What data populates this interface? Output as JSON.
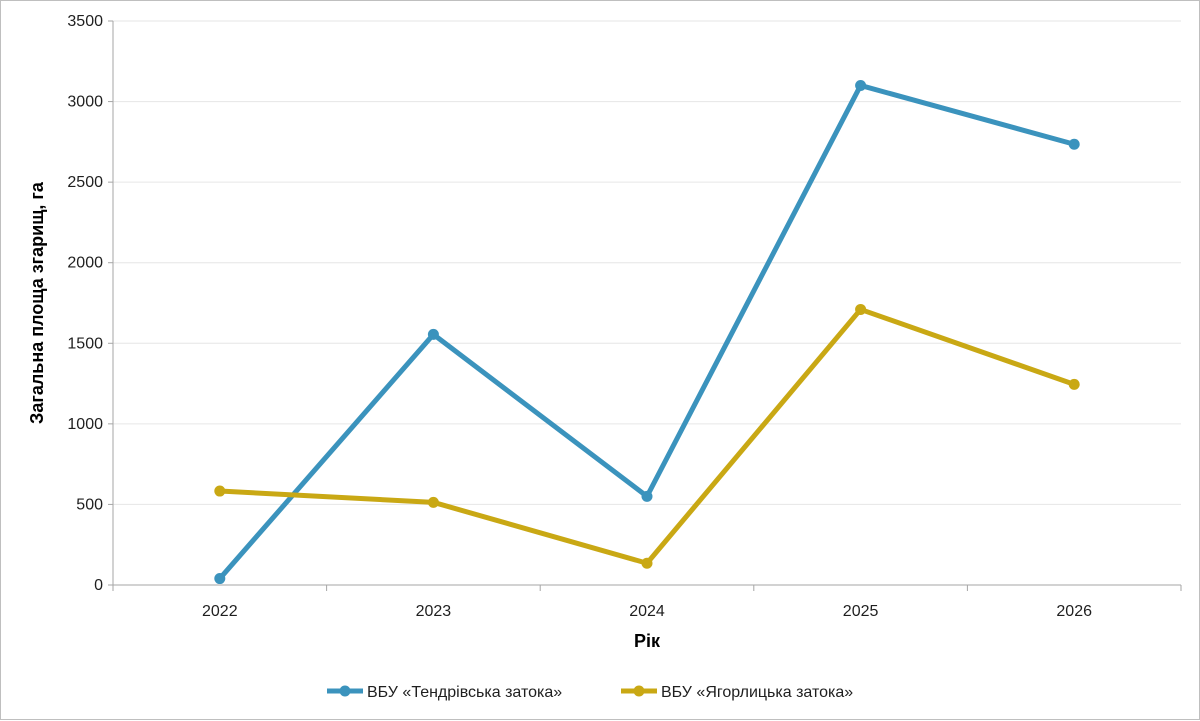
{
  "chart_data": {
    "type": "line",
    "title": "",
    "xlabel": "Рік",
    "ylabel": "Загальна площа згарищ, га",
    "categories": [
      "2022",
      "2023",
      "2024",
      "2025",
      "2026"
    ],
    "ylim": [
      0,
      3500
    ],
    "yticks": [
      0,
      500,
      1000,
      1500,
      2000,
      2500,
      3000,
      3500
    ],
    "grid": true,
    "legend_position": "bottom",
    "series": [
      {
        "name": "ВБУ «Тендрівська затока»",
        "color": "#3b93bd",
        "values": [
          40,
          1555,
          550,
          3100,
          2735
        ]
      },
      {
        "name": "ВБУ «Ягорлицька затока»",
        "color": "#c9a814",
        "values": [
          583,
          513,
          135,
          1710,
          1245
        ]
      }
    ]
  }
}
